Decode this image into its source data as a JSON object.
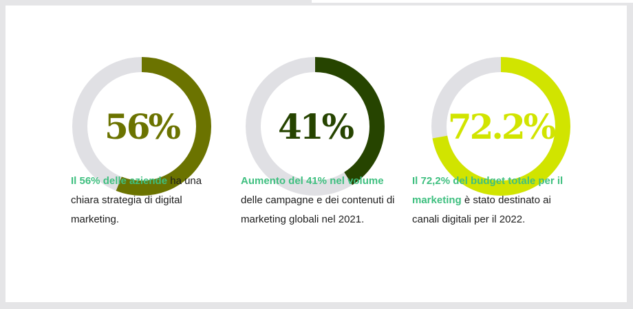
{
  "chart_data": [
    {
      "type": "pie",
      "value": 56,
      "display_value": "56%",
      "color": "#6b7300",
      "track_color": "#e0e0e4",
      "caption": {
        "highlight": "Il 56% delle aziende",
        "rest": " ha una chiara strategia di digital marketing."
      }
    },
    {
      "type": "pie",
      "value": 41,
      "display_value": "41%",
      "color": "#264400",
      "track_color": "#e0e0e4",
      "caption": {
        "highlight": "Aumento del 41% nel volume",
        "rest": " delle campagne e dei contenuti di marketing globali nel 2021."
      }
    },
    {
      "type": "pie",
      "value": 72.2,
      "display_value": "72.2%",
      "color": "#d1e400",
      "track_color": "#e0e0e4",
      "caption": {
        "highlight": "Il 72,2% del budget totale per il marketing",
        "rest": " è stato destinato ai canali digitali per il 2022."
      }
    }
  ],
  "colors": {
    "highlight_text": "#3ebf7f",
    "body_text": "#1c1c1c",
    "background": "#ffffff",
    "frame": "#e5e5e7"
  }
}
